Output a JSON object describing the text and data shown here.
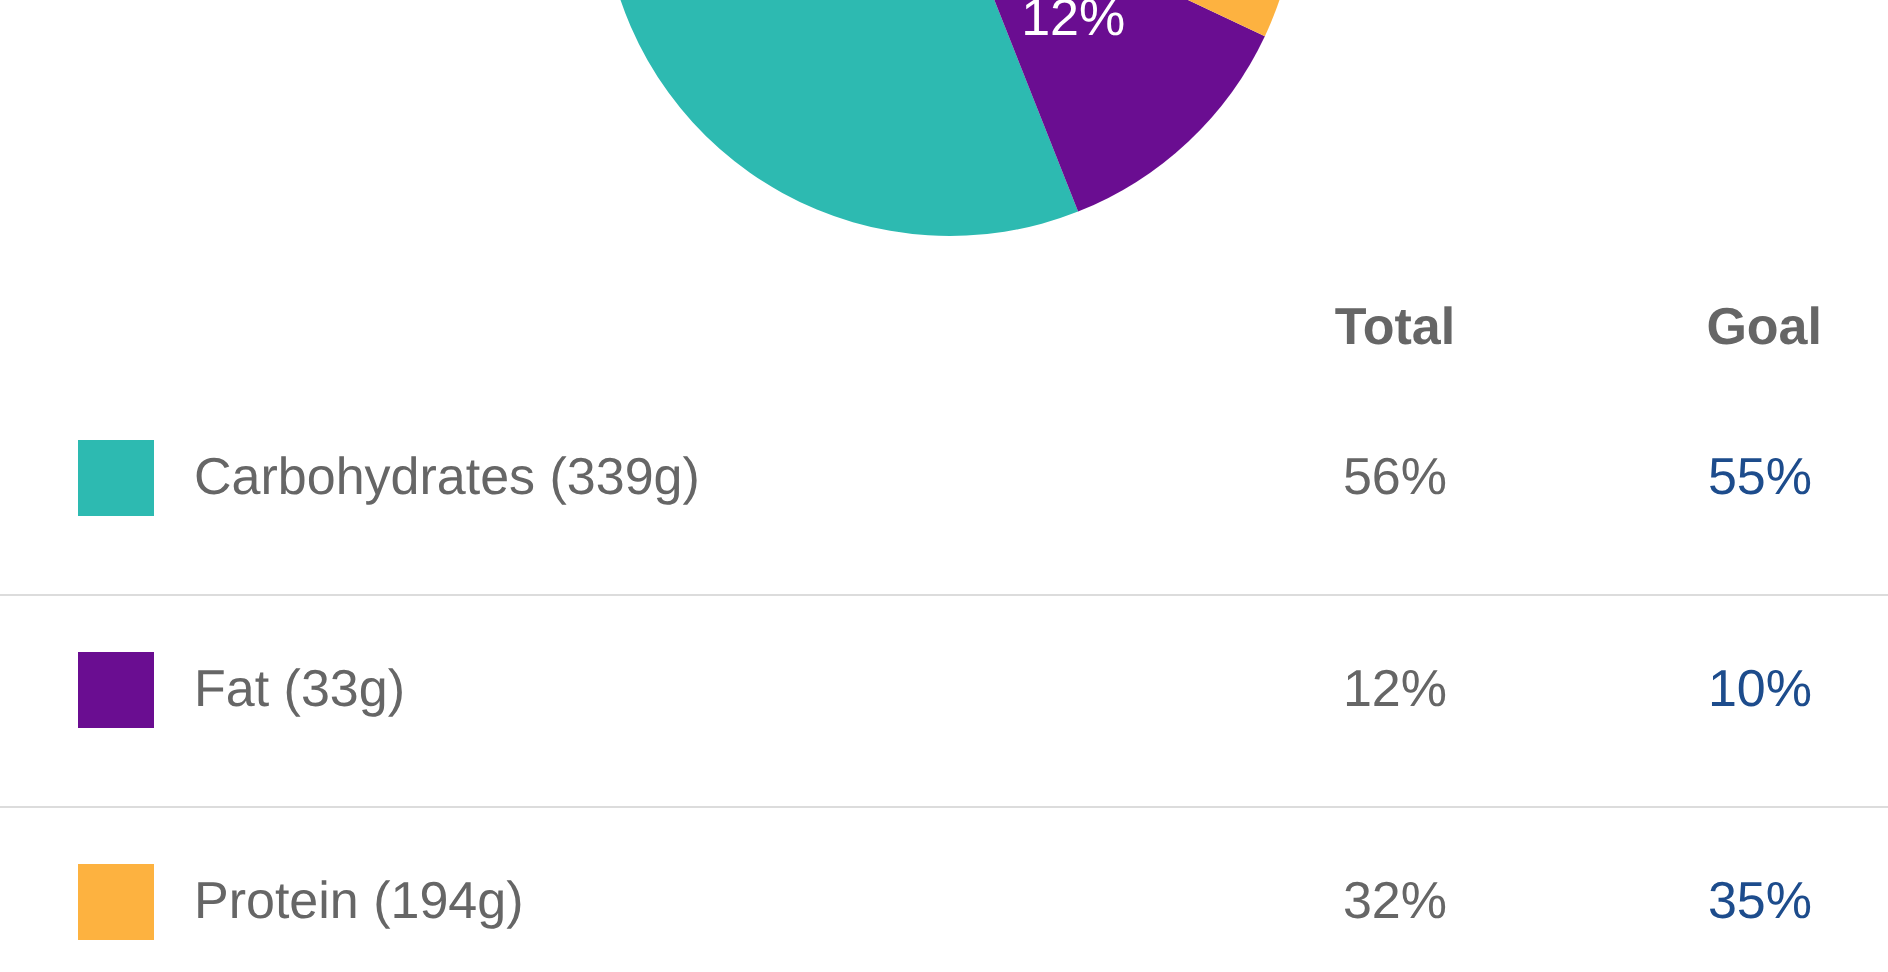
{
  "chart_data": {
    "type": "pie",
    "categories": [
      "Carbohydrates (339g)",
      "Fat (33g)",
      "Protein (194g)"
    ],
    "values": [
      56,
      12,
      32
    ],
    "colors": [
      "#2dbab1",
      "#6a0d91",
      "#fdb240"
    ],
    "value_labels": [
      "56%",
      "12%",
      "32%"
    ],
    "legend": "bottom",
    "annotations": [
      "Total",
      "Goal",
      "55%",
      "10%",
      "35%"
    ]
  }
}
